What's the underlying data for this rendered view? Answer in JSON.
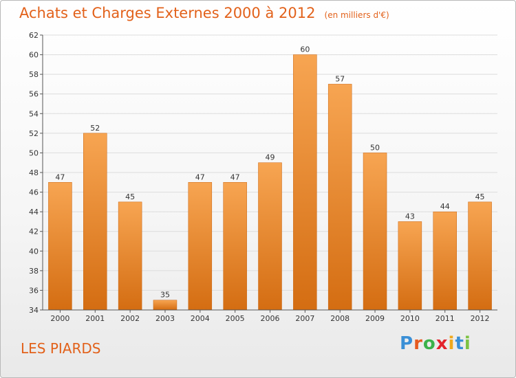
{
  "title": "Achats et Charges Externes 2000 à 2012",
  "unit": "(en milliers d'€)",
  "commune": "LES PIARDS",
  "logo": {
    "letters": [
      "P",
      "r",
      "o",
      "x",
      "i",
      "t",
      "i"
    ],
    "colors": [
      "#3a8fd6",
      "#e65a1f",
      "#3bb24a",
      "#e3232b",
      "#f0a81c",
      "#3a8fd6",
      "#7cc242"
    ]
  },
  "chart_data": {
    "type": "bar",
    "categories": [
      "2000",
      "2001",
      "2002",
      "2003",
      "2004",
      "2005",
      "2006",
      "2007",
      "2008",
      "2009",
      "2010",
      "2011",
      "2012"
    ],
    "values": [
      47,
      52,
      45,
      35,
      47,
      47,
      49,
      60,
      57,
      50,
      43,
      44,
      45
    ],
    "ylim": [
      34,
      62
    ],
    "yticks": [
      34,
      36,
      38,
      40,
      42,
      44,
      46,
      48,
      50,
      52,
      54,
      56,
      58,
      60,
      62
    ],
    "grid": true,
    "bar_color_top": "#f7a552",
    "bar_color_bottom": "#d46d12",
    "title": "Achats et Charges Externes 2000 à 2012",
    "xlabel": "",
    "ylabel": ""
  }
}
